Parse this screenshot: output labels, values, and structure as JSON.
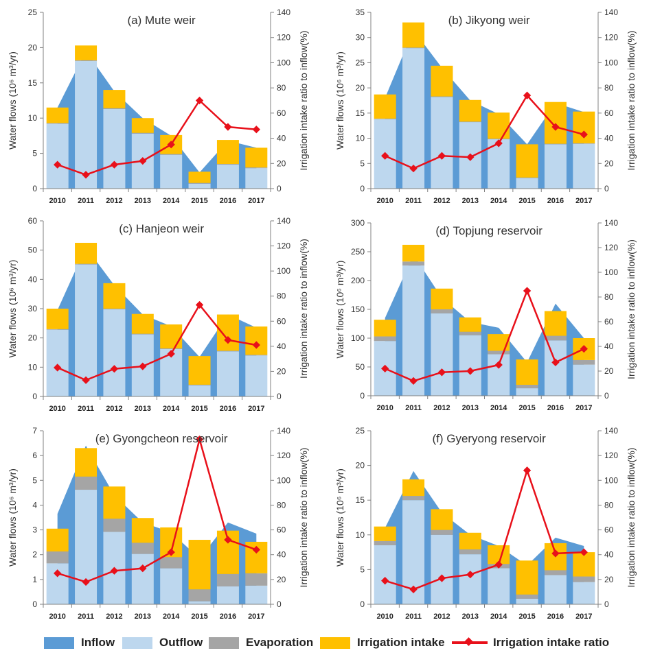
{
  "colors": {
    "inflow": "#5b9bd5",
    "outflow": "#bdd7ee",
    "evaporation": "#a5a5a5",
    "irrigation_intake": "#ffc000",
    "ratio_line": "#e8101a"
  },
  "legend": {
    "inflow": "Inflow",
    "outflow": "Outflow",
    "evaporation": "Evaporation",
    "irrigation_intake": "Irrigation intake",
    "ratio": "Irrigation intake ratio"
  },
  "chart_data": [
    {
      "type": "bar",
      "title": "(a) Mute weir",
      "categories": [
        "2010",
        "2011",
        "2012",
        "2013",
        "2014",
        "2015",
        "2016",
        "2017"
      ],
      "ylabel": "Water flows (10⁶ m³/yr)",
      "y2label": "Irrigation intake ratio to inflow(%)",
      "ylim": [
        0,
        25
      ],
      "yticks": [
        0,
        5,
        10,
        15,
        20,
        25
      ],
      "y2lim": [
        0,
        140
      ],
      "y2ticks": [
        0,
        20,
        40,
        60,
        80,
        100,
        120,
        140
      ],
      "series": [
        {
          "name": "Inflow",
          "values": [
            11.5,
            19.5,
            13.8,
            10.0,
            7.5,
            2.3,
            6.8,
            5.8
          ]
        },
        {
          "name": "Outflow",
          "values": [
            9.2,
            18.1,
            11.3,
            7.8,
            4.8,
            0.7,
            3.4,
            2.9
          ]
        },
        {
          "name": "Evaporation",
          "values": [
            0.1,
            0.1,
            0.1,
            0.1,
            0.1,
            0.1,
            0.1,
            0.1
          ]
        },
        {
          "name": "Irrigation intake",
          "values": [
            2.2,
            2.1,
            2.6,
            2.1,
            2.7,
            1.6,
            3.4,
            2.8
          ]
        },
        {
          "name": "Irrigation intake ratio",
          "values": [
            19,
            11,
            19,
            22,
            35,
            70,
            49,
            47
          ],
          "axis": "right"
        }
      ]
    },
    {
      "type": "bar",
      "title": "(b) Jikyong weir",
      "categories": [
        "2010",
        "2011",
        "2012",
        "2013",
        "2014",
        "2015",
        "2016",
        "2017"
      ],
      "ylabel": "Water flows (10⁶ m³/yr)",
      "y2label": "Irrigation intake ratio to inflow(%)",
      "ylim": [
        0,
        35
      ],
      "yticks": [
        0,
        5,
        10,
        15,
        20,
        25,
        30,
        35
      ],
      "y2lim": [
        0,
        140
      ],
      "y2ticks": [
        0,
        20,
        40,
        60,
        80,
        100,
        120,
        140
      ],
      "series": [
        {
          "name": "Inflow",
          "values": [
            18.0,
            31.5,
            24.0,
            17.5,
            14.8,
            8.8,
            17.0,
            15.2
          ]
        },
        {
          "name": "Outflow",
          "values": [
            13.8,
            27.9,
            18.2,
            13.2,
            9.8,
            2.1,
            8.8,
            8.9
          ]
        },
        {
          "name": "Evaporation",
          "values": [
            0.1,
            0.1,
            0.1,
            0.1,
            0.1,
            0.1,
            0.1,
            0.1
          ]
        },
        {
          "name": "Irrigation intake",
          "values": [
            4.8,
            5.0,
            6.1,
            4.3,
            5.2,
            6.6,
            8.3,
            6.3
          ]
        },
        {
          "name": "Irrigation intake ratio",
          "values": [
            26,
            16,
            26,
            25,
            36,
            74,
            49,
            43
          ],
          "axis": "right"
        }
      ]
    },
    {
      "type": "bar",
      "title": "(c) Hanjeon weir",
      "categories": [
        "2010",
        "2011",
        "2012",
        "2013",
        "2014",
        "2015",
        "2016",
        "2017"
      ],
      "ylabel": "Water flows (10⁶ m³/yr)",
      "y2label": "Irrigation intake ratio to inflow(%)",
      "ylim": [
        0,
        60
      ],
      "yticks": [
        0,
        10,
        20,
        30,
        40,
        50,
        60
      ],
      "y2lim": [
        0,
        140
      ],
      "y2ticks": [
        0,
        20,
        40,
        60,
        80,
        100,
        120,
        140
      ],
      "series": [
        {
          "name": "Inflow",
          "values": [
            29.5,
            51.0,
            38.0,
            28.0,
            24.0,
            13.5,
            28.0,
            23.5
          ]
        },
        {
          "name": "Outflow",
          "values": [
            22.8,
            45.1,
            29.8,
            21.2,
            16.2,
            3.8,
            15.4,
            14.0
          ]
        },
        {
          "name": "Evaporation",
          "values": [
            0.2,
            0.2,
            0.2,
            0.2,
            0.2,
            0.2,
            0.2,
            0.2
          ]
        },
        {
          "name": "Irrigation intake",
          "values": [
            7.0,
            7.2,
            8.7,
            6.8,
            8.2,
            9.8,
            12.4,
            9.7
          ]
        },
        {
          "name": "Irrigation intake ratio",
          "values": [
            23,
            13,
            22,
            24,
            34,
            73,
            45,
            41
          ],
          "axis": "right"
        }
      ]
    },
    {
      "type": "bar",
      "title": "(d) Topjung reservoir",
      "categories": [
        "2010",
        "2011",
        "2012",
        "2013",
        "2014",
        "2015",
        "2016",
        "2017"
      ],
      "ylabel": "Water flows (10⁶ m³/yr)",
      "y2label": "Irrigation intake ratio to inflow(%)",
      "ylim": [
        0,
        300
      ],
      "yticks": [
        0,
        50,
        100,
        150,
        200,
        250,
        300
      ],
      "y2lim": [
        0,
        140
      ],
      "y2ticks": [
        0,
        20,
        40,
        60,
        80,
        100,
        120,
        140
      ],
      "series": [
        {
          "name": "Inflow",
          "values": [
            135,
            245,
            170,
            128,
            118,
            58,
            160,
            100
          ]
        },
        {
          "name": "Outflow",
          "values": [
            95,
            226,
            143,
            105,
            72,
            13,
            96,
            54
          ]
        },
        {
          "name": "Evaporation",
          "values": [
            8,
            7,
            7,
            6,
            6,
            6,
            8,
            8
          ]
        },
        {
          "name": "Irrigation intake",
          "values": [
            29,
            29,
            36,
            25,
            29,
            44,
            43,
            38
          ]
        },
        {
          "name": "Irrigation intake ratio",
          "values": [
            22,
            12,
            19,
            20,
            25,
            85,
            27,
            38
          ],
          "axis": "right"
        }
      ]
    },
    {
      "type": "bar",
      "title": "(e) Gyongcheon reservoir",
      "categories": [
        "2010",
        "2011",
        "2012",
        "2013",
        "2014",
        "2015",
        "2016",
        "2017"
      ],
      "ylabel": "Water flows (10⁶ m³/yr)",
      "y2label": "Irrigation intake ratio to inflow(%)",
      "ylim": [
        0,
        7
      ],
      "yticks": [
        0,
        1,
        2,
        3,
        4,
        5,
        6,
        7
      ],
      "y2lim": [
        0,
        140
      ],
      "y2ticks": [
        0,
        20,
        40,
        60,
        80,
        100,
        120,
        140
      ],
      "series": [
        {
          "name": "Inflow",
          "values": [
            3.65,
            6.4,
            4.4,
            3.3,
            2.9,
            1.85,
            3.3,
            2.85
          ]
        },
        {
          "name": "Outflow",
          "values": [
            1.65,
            4.62,
            2.92,
            2.03,
            1.45,
            0.12,
            0.72,
            0.75
          ]
        },
        {
          "name": "Evaporation",
          "values": [
            0.48,
            0.53,
            0.53,
            0.45,
            0.45,
            0.48,
            0.5,
            0.5
          ]
        },
        {
          "name": "Irrigation intake",
          "values": [
            0.92,
            1.15,
            1.3,
            1.0,
            1.2,
            2.0,
            1.75,
            1.27
          ]
        },
        {
          "name": "Irrigation intake ratio",
          "values": [
            25,
            18,
            27,
            29,
            42,
            133,
            52,
            44
          ],
          "axis": "right"
        }
      ]
    },
    {
      "type": "bar",
      "title": "(f) Gyeryong reservoir",
      "categories": [
        "2010",
        "2011",
        "2012",
        "2013",
        "2014",
        "2015",
        "2016",
        "2017"
      ],
      "ylabel": "Water flows (10⁶ m³/yr)",
      "y2label": "Irrigation intake ratio to inflow(%)",
      "ylim": [
        0,
        25
      ],
      "yticks": [
        0,
        5,
        10,
        15,
        20,
        25
      ],
      "y2lim": [
        0,
        140
      ],
      "y2ticks": [
        0,
        20,
        40,
        60,
        80,
        100,
        120,
        140
      ],
      "series": [
        {
          "name": "Inflow",
          "values": [
            11.0,
            19.2,
            13.2,
            10.0,
            8.4,
            5.6,
            9.6,
            8.4
          ]
        },
        {
          "name": "Outflow",
          "values": [
            8.5,
            15.0,
            10.0,
            7.2,
            5.2,
            0.8,
            4.2,
            3.2
          ]
        },
        {
          "name": "Evaporation",
          "values": [
            0.6,
            0.6,
            0.7,
            0.7,
            0.6,
            0.6,
            0.7,
            0.8
          ]
        },
        {
          "name": "Irrigation intake",
          "values": [
            2.1,
            2.4,
            3.0,
            2.4,
            2.7,
            4.9,
            3.9,
            3.5
          ]
        },
        {
          "name": "Irrigation intake ratio",
          "values": [
            19,
            12,
            21,
            24,
            32,
            108,
            41,
            42
          ],
          "axis": "right"
        }
      ]
    }
  ]
}
